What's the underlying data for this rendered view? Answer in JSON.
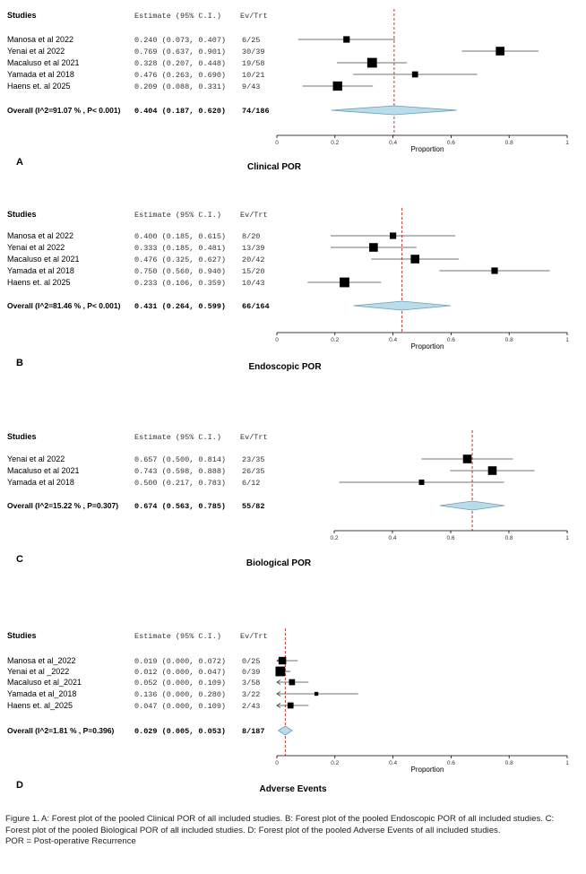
{
  "chart_data": [
    {
      "type": "forest",
      "panel_label": "A",
      "title": "Clinical POR",
      "columns": {
        "study": "Studies",
        "estimate": "Estimate (95% C.I.)",
        "events": "Ev/Trt"
      },
      "xlabel": "Proportion",
      "xlim": [
        0,
        1
      ],
      "xticks": [
        "0",
        "0.2",
        "0.4",
        "0.6",
        "0.8",
        "1"
      ],
      "studies": [
        {
          "name": "Manosa et al 2022",
          "estimate": 0.24,
          "lower": 0.073,
          "upper": 0.407,
          "ci_text": "0.240 (0.073, 0.407)",
          "events": "6/25",
          "weight": 3
        },
        {
          "name": " Yenai  et al 2022",
          "estimate": 0.769,
          "lower": 0.637,
          "upper": 0.901,
          "ci_text": "0.769 (0.637, 0.901)",
          "events": "30/39",
          "weight": 4
        },
        {
          "name": "Macaluso et al 2021",
          "estimate": 0.328,
          "lower": 0.207,
          "upper": 0.448,
          "ci_text": "0.328 (0.207, 0.448)",
          "events": "19/58",
          "weight": 4.5
        },
        {
          "name": "Yamada et al 2018",
          "estimate": 0.476,
          "lower": 0.263,
          "upper": 0.69,
          "ci_text": "0.476 (0.263, 0.690)",
          "events": "10/21",
          "weight": 2.8
        },
        {
          "name": "Haens et. al 2025",
          "estimate": 0.209,
          "lower": 0.088,
          "upper": 0.331,
          "ci_text": "0.209 (0.088, 0.331)",
          "events": "9/43",
          "weight": 4.3
        }
      ],
      "overall": {
        "label": "Overall (I^2=91.07 % , P< 0.001)",
        "estimate": 0.404,
        "lower": 0.187,
        "upper": 0.62,
        "ci_text": "0.404 (0.187, 0.620)",
        "events": "74/186"
      }
    },
    {
      "type": "forest",
      "panel_label": "B",
      "title": "Endoscopic POR",
      "columns": {
        "study": "Studies",
        "estimate": "Estimate (95% C.I.)",
        "events": "Ev/Trt"
      },
      "xlabel": "Proportion",
      "xlim": [
        0,
        1
      ],
      "xticks": [
        "0",
        "0.2",
        "0.4",
        "0.6",
        "0.8",
        "1"
      ],
      "studies": [
        {
          "name": "Manosa et al 2022",
          "estimate": 0.4,
          "lower": 0.185,
          "upper": 0.615,
          "ci_text": "0.400 (0.185, 0.615)",
          "events": "8/20",
          "weight": 3
        },
        {
          "name": " Yenai  et al 2022",
          "estimate": 0.333,
          "lower": 0.185,
          "upper": 0.481,
          "ci_text": "0.333 (0.185, 0.481)",
          "events": "13/39",
          "weight": 4
        },
        {
          "name": "Macaluso et al 2021",
          "estimate": 0.476,
          "lower": 0.325,
          "upper": 0.627,
          "ci_text": "0.476 (0.325, 0.627)",
          "events": "20/42",
          "weight": 4
        },
        {
          "name": "Yamada et al 2018",
          "estimate": 0.75,
          "lower": 0.56,
          "upper": 0.94,
          "ci_text": "0.750 (0.560, 0.940)",
          "events": "15/20",
          "weight": 3
        },
        {
          "name": "Haens et. al 2025",
          "estimate": 0.233,
          "lower": 0.106,
          "upper": 0.359,
          "ci_text": "0.233 (0.106, 0.359)",
          "events": "10/43",
          "weight": 4.5
        }
      ],
      "overall": {
        "label": "Overall (I^2=81.46 % , P< 0.001)",
        "estimate": 0.431,
        "lower": 0.264,
        "upper": 0.599,
        "ci_text": "0.431 (0.264, 0.599)",
        "events": "66/164"
      }
    },
    {
      "type": "forest",
      "panel_label": "C",
      "title": "Biological POR",
      "columns": {
        "study": "Studies",
        "estimate": "Estimate (95% C.I.)",
        "events": "Ev/Trt"
      },
      "xlabel": "",
      "xlim": [
        0.2,
        1
      ],
      "xticks": [
        "0.2",
        "0.4",
        "0.6",
        "0.8",
        "1"
      ],
      "studies": [
        {
          "name": " Yenai  et al 2022",
          "estimate": 0.657,
          "lower": 0.5,
          "upper": 0.814,
          "ci_text": "0.657 (0.500, 0.814)",
          "events": "23/35",
          "weight": 4
        },
        {
          "name": "Macaluso et al 2021",
          "estimate": 0.743,
          "lower": 0.598,
          "upper": 0.888,
          "ci_text": "0.743 (0.598, 0.888)",
          "events": "26/35",
          "weight": 4
        },
        {
          "name": "Yamada et al 2018",
          "estimate": 0.5,
          "lower": 0.217,
          "upper": 0.783,
          "ci_text": "0.500 (0.217, 0.783)",
          "events": "6/12",
          "weight": 2.5
        }
      ],
      "overall": {
        "label": "Overall (I^2=15.22 % , P=0.307)",
        "estimate": 0.674,
        "lower": 0.563,
        "upper": 0.785,
        "ci_text": "0.674 (0.563, 0.785)",
        "events": "55/82"
      }
    },
    {
      "type": "forest",
      "panel_label": "D",
      "title": "Adverse Events",
      "columns": {
        "study": "Studies",
        "estimate": "Estimate (95% C.I.)",
        "events": "Ev/Trt"
      },
      "xlabel": "Proportion",
      "xlim": [
        0,
        1
      ],
      "xticks": [
        "0",
        "0.2",
        "0.4",
        "0.6",
        "0.8",
        "1"
      ],
      "studies": [
        {
          "name": "Manosa et al_2022",
          "estimate": 0.019,
          "lower": 0.0,
          "upper": 0.072,
          "ci_text": "0.019 (0.000, 0.072)",
          "events": "0/25",
          "weight": 3.5
        },
        {
          "name": " Yenai  et al _2022",
          "estimate": 0.012,
          "lower": 0.0,
          "upper": 0.047,
          "ci_text": "0.012 (0.000, 0.047)",
          "events": "0/39",
          "weight": 4.5
        },
        {
          "name": "Macaluso et al_2021",
          "estimate": 0.052,
          "lower": 0.0,
          "upper": 0.109,
          "ci_text": "0.052 (0.000, 0.109)",
          "events": "3/58",
          "weight": 2.8
        },
        {
          "name": "Yamada et al_2018",
          "estimate": 0.136,
          "lower": 0.0,
          "upper": 0.28,
          "ci_text": "0.136 (0.000, 0.280)",
          "events": "3/22",
          "weight": 1.8
        },
        {
          "name": "Haens et. al_2025",
          "estimate": 0.047,
          "lower": 0.0,
          "upper": 0.109,
          "ci_text": "0.047 (0.000, 0.109)",
          "events": "2/43",
          "weight": 2.8
        }
      ],
      "overall": {
        "label": "Overall (I^2=1.81 % , P=0.396)",
        "estimate": 0.029,
        "lower": 0.005,
        "upper": 0.053,
        "ci_text": "0.029 (0.005, 0.053)",
        "events": "8/187"
      }
    }
  ],
  "colors": {
    "marker": "#000000",
    "diamond_fill": "#b8dcea",
    "diamond_stroke": "#6f9fb5",
    "reference_line": "#c0392b",
    "axis": "#000000"
  },
  "caption": {
    "main": "Figure 1. A: Forest plot of the pooled Clinical POR of all included studies. B: Forest plot of the pooled Endoscopic POR of all included studies. C: Forest plot of the pooled Biological POR of all included studies. D: Forest plot of the pooled Adverse Events of all included studies.",
    "abbrev": "POR = Post-operative Recurrence"
  }
}
